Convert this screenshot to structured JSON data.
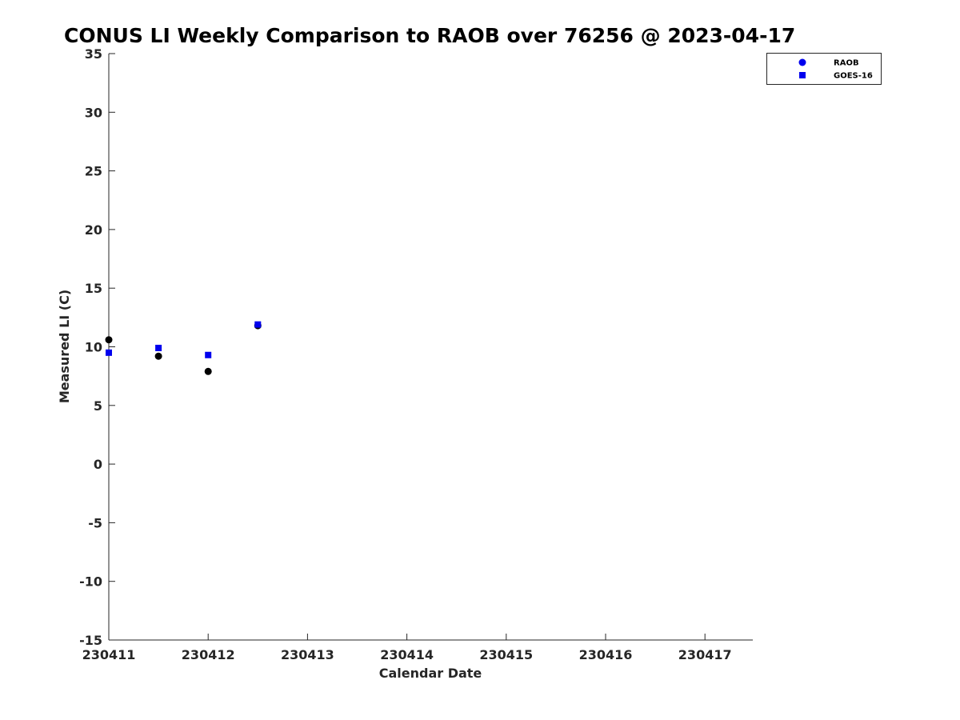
{
  "chart_data": {
    "type": "scatter",
    "title": "CONUS LI Weekly Comparison to RAOB over 76256 @ 2023-04-17",
    "xlabel": "Calendar Date",
    "ylabel": "Measured LI (C)",
    "x_ticks": [
      "230411",
      "230412",
      "230413",
      "230414",
      "230415",
      "230416",
      "230417"
    ],
    "xlim": [
      "230411",
      "230417.5"
    ],
    "ylim": [
      -15,
      35
    ],
    "y_ticks": [
      -15,
      -10,
      -5,
      0,
      5,
      10,
      15,
      20,
      25,
      30,
      35
    ],
    "grid": false,
    "legend_position": "top-right",
    "legend": [
      {
        "name": "RAOB",
        "marker": "circle",
        "color": "#0000ee"
      },
      {
        "name": "GOES-16",
        "marker": "square",
        "color": "#0000ee"
      }
    ],
    "series": [
      {
        "name": "RAOB",
        "marker": "circle",
        "color": "#000000",
        "points": [
          {
            "x": "230411 00Z",
            "y": 10.6
          },
          {
            "x": "230411 12Z",
            "y": 9.2
          },
          {
            "x": "230412 00Z",
            "y": 7.9
          },
          {
            "x": "230412 12Z",
            "y": 11.8
          }
        ]
      },
      {
        "name": "GOES-16",
        "marker": "square",
        "color": "#0000ee",
        "points": [
          {
            "x": "230411 00Z",
            "y": 9.5
          },
          {
            "x": "230411 12Z",
            "y": 9.9
          },
          {
            "x": "230412 00Z",
            "y": 9.3
          },
          {
            "x": "230412 12Z",
            "y": 11.9
          }
        ]
      }
    ]
  }
}
